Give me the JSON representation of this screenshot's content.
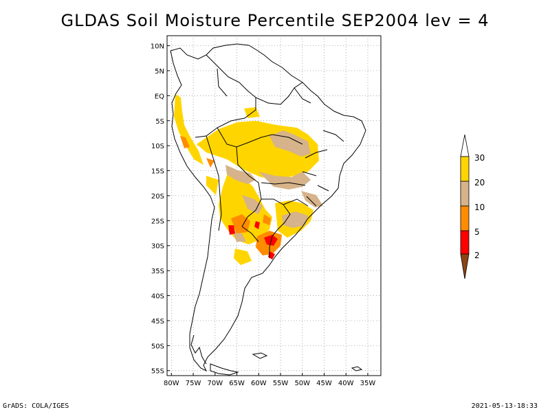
{
  "title": "GLDAS Soil Moisture Percentile SEP2004 lev = 4",
  "footer": {
    "left": "GrADS: COLA/IGES",
    "right": "2021-05-13-18:33"
  },
  "map": {
    "lon_range": [
      -81,
      -32
    ],
    "lat_range": [
      -56,
      12
    ],
    "lon_ticks": [
      "80W",
      "75W",
      "70W",
      "65W",
      "60W",
      "55W",
      "50W",
      "45W",
      "40W",
      "35W"
    ],
    "lat_ticks": [
      "10N",
      "5N",
      "EQ",
      "5S",
      "10S",
      "15S",
      "20S",
      "25S",
      "30S",
      "35S",
      "40S",
      "45S",
      "50S",
      "55S"
    ],
    "grid": true
  },
  "colorbar": {
    "labels": [
      "30",
      "20",
      "10",
      "5",
      "2"
    ],
    "colors": {
      "gt30": "#ffffff",
      "20-30": "#ffd500",
      "10-20": "#d6b38a",
      "5-10": "#ff8c00",
      "2-5": "#ff0000",
      "lt2": "#8b4513"
    }
  }
}
